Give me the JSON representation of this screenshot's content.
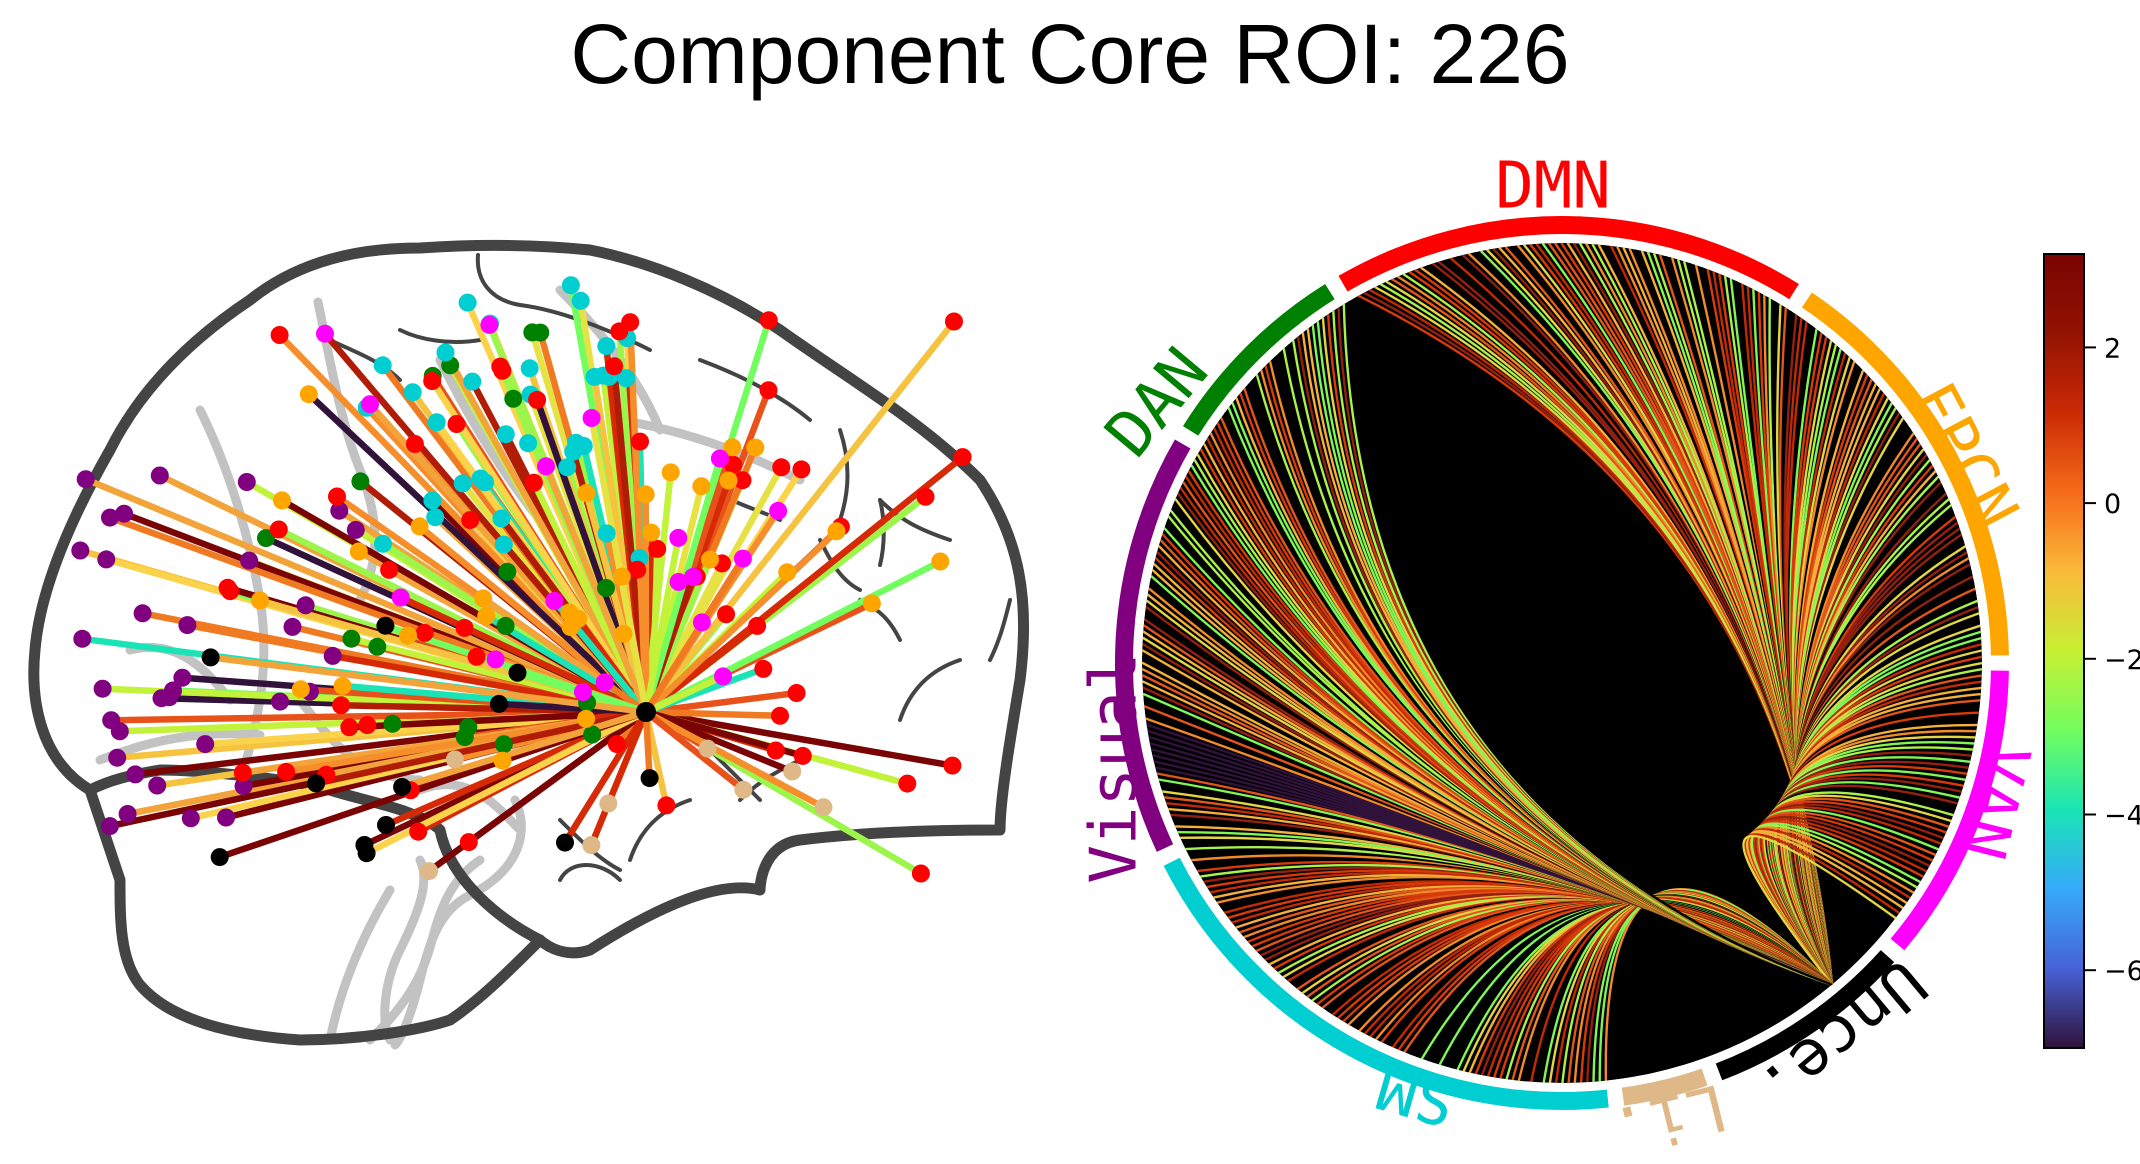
{
  "title": "Component Core ROI: 226",
  "networks": [
    {
      "key": "DMN",
      "label": "DMN",
      "color": "#ff0000"
    },
    {
      "key": "FPCN",
      "label": "FPCN",
      "color": "#ffa500"
    },
    {
      "key": "VAN",
      "label": "VAN",
      "color": "#ff00ff"
    },
    {
      "key": "Unce",
      "label": "Unce.",
      "color": "#000000"
    },
    {
      "key": "Li",
      "label": "Li.",
      "color": "#deb887"
    },
    {
      "key": "SM",
      "label": "SM",
      "color": "#00ced1"
    },
    {
      "key": "Visual",
      "label": "Visual",
      "color": "#800080"
    },
    {
      "key": "DAN",
      "label": "DAN",
      "color": "#008000"
    }
  ],
  "colorbar": {
    "colormap": "turbo",
    "range": [
      -7,
      3.2
    ],
    "ticks": [
      "2",
      "0",
      "−2",
      "−4",
      "−6"
    ]
  }
}
